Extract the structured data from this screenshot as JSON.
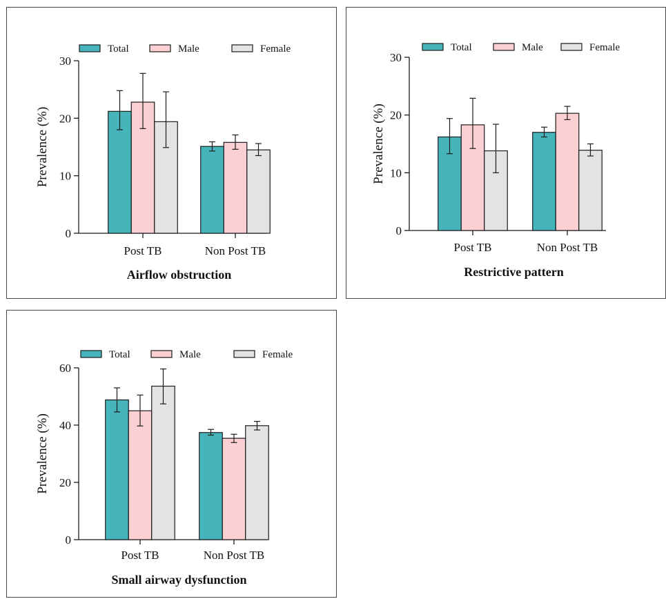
{
  "legend": {
    "total": "Total",
    "male": "Male",
    "female": "Female"
  },
  "colors": {
    "total": "#45b5bb",
    "male": "#fcd0d3",
    "female": "#e3e3e3",
    "stroke": "#1a1a1a"
  },
  "chart_data": [
    {
      "type": "bar",
      "title": "Airflow obstruction",
      "ylabel": "Prevalence (%)",
      "xlabel": "",
      "categories": [
        "Post TB",
        "Non Post TB"
      ],
      "ylim": [
        0,
        30
      ],
      "yticks": [
        0,
        10,
        20,
        30
      ],
      "legend_position": "top",
      "series": [
        {
          "name": "Total",
          "values": [
            21.2,
            15.1
          ],
          "err_low": [
            18.0,
            14.3
          ],
          "err_high": [
            24.8,
            15.9
          ]
        },
        {
          "name": "Male",
          "values": [
            22.8,
            15.8
          ],
          "err_low": [
            18.2,
            14.6
          ],
          "err_high": [
            27.8,
            17.1
          ]
        },
        {
          "name": "Female",
          "values": [
            19.4,
            14.5
          ],
          "err_low": [
            14.9,
            13.5
          ],
          "err_high": [
            24.6,
            15.6
          ]
        }
      ]
    },
    {
      "type": "bar",
      "title": "Restrictive pattern",
      "ylabel": "Prevalence (%)",
      "xlabel": "",
      "categories": [
        "Post TB",
        "Non Post TB"
      ],
      "ylim": [
        0,
        30
      ],
      "yticks": [
        0,
        10,
        20,
        30
      ],
      "legend_position": "top",
      "series": [
        {
          "name": "Total",
          "values": [
            16.2,
            17.0
          ],
          "err_low": [
            13.3,
            16.2
          ],
          "err_high": [
            19.4,
            17.9
          ]
        },
        {
          "name": "Male",
          "values": [
            18.3,
            20.3
          ],
          "err_low": [
            14.2,
            19.2
          ],
          "err_high": [
            22.9,
            21.5
          ]
        },
        {
          "name": "Female",
          "values": [
            13.8,
            13.9
          ],
          "err_low": [
            10.0,
            12.9
          ],
          "err_high": [
            18.4,
            15.0
          ]
        }
      ]
    },
    {
      "type": "bar",
      "title": "Small airway dysfunction",
      "ylabel": "Prevalence (%)",
      "xlabel": "",
      "categories": [
        "Post TB",
        "Non Post TB"
      ],
      "ylim": [
        0,
        60
      ],
      "yticks": [
        0,
        20,
        40,
        60
      ],
      "legend_position": "top",
      "series": [
        {
          "name": "Total",
          "values": [
            48.8,
            37.4
          ],
          "err_low": [
            44.6,
            36.5
          ],
          "err_high": [
            53.0,
            38.5
          ]
        },
        {
          "name": "Male",
          "values": [
            45.0,
            35.4
          ],
          "err_low": [
            39.7,
            33.9
          ],
          "err_high": [
            50.5,
            36.8
          ]
        },
        {
          "name": "Female",
          "values": [
            53.6,
            39.8
          ],
          "err_low": [
            47.4,
            38.3
          ],
          "err_high": [
            59.6,
            41.3
          ]
        }
      ]
    }
  ]
}
